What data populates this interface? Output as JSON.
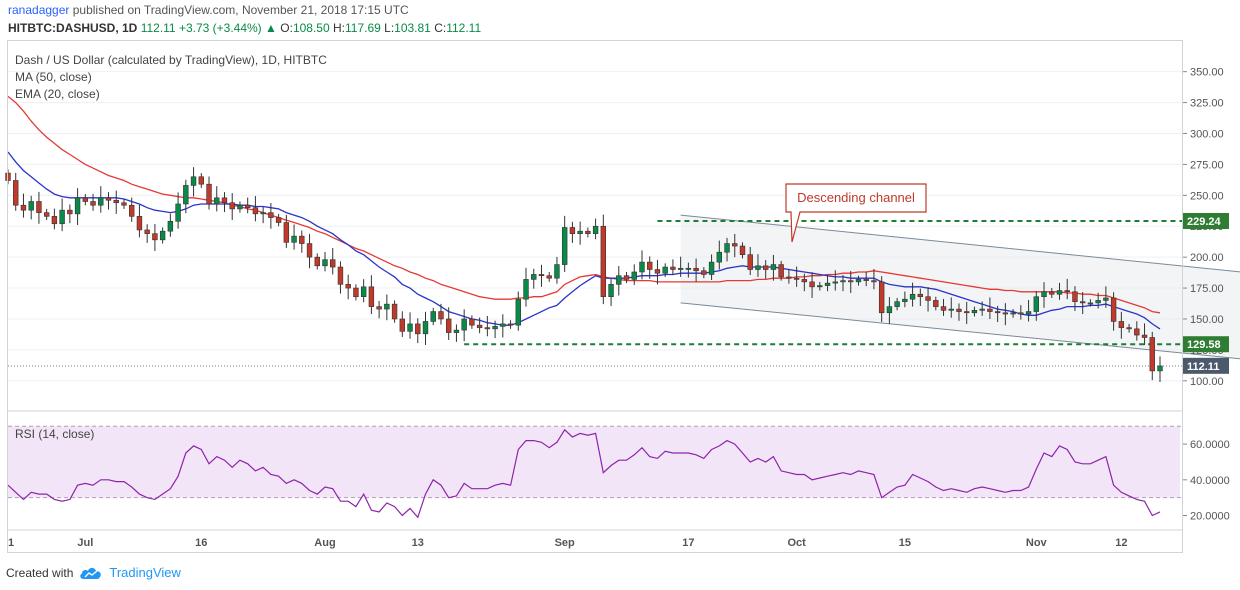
{
  "header": {
    "user": "ranadagger",
    "published_text": "published on TradingView.com, November 21, 2018 17:15 UTC"
  },
  "ohlc_bar": {
    "symbol": "HITBTC:DASHUSD, 1D",
    "last": "112.11",
    "change": "+3.73 (+3.44%)",
    "open_label": "O:",
    "open": "108.50",
    "high_label": "H:",
    "high": "117.69",
    "low_label": "L:",
    "low": "103.81",
    "close_label": "C:",
    "close": "112.11"
  },
  "legend": {
    "title": "Dash / US Dollar (calculated by TradingView), 1D, HITBTC",
    "ma": "MA (50, close)",
    "ema": "EMA (20, close)"
  },
  "rsi_label": "RSI (14, close)",
  "annotation": "Descending channel",
  "price_tags": [
    {
      "value": 229.24,
      "label": "229.24"
    },
    {
      "value": 129.58,
      "label": "129.58"
    },
    {
      "value": 112.11,
      "label": "112.11"
    }
  ],
  "footer": {
    "created_with": "Created with",
    "brand": "TradingView"
  },
  "colors": {
    "up": "#0a8a48",
    "down": "#c0392b",
    "ma50": "#e53935",
    "ema20": "#2a35c8",
    "rsi": "#8e24aa",
    "rsi_band": "#f3e5f8",
    "level": "#1e7e34",
    "tag": "#2e7d32",
    "last_tag": "#4a5a6a",
    "channel": "#7a8a99"
  },
  "chart_data": {
    "type": "candlestick",
    "price_axis": {
      "ticks": [
        100,
        125,
        150,
        175,
        200,
        225,
        250,
        275,
        300,
        325,
        350
      ],
      "tick_labels": [
        "100.00",
        "125.00",
        "150.00",
        "175.00",
        "200.00",
        "225.00",
        "250.00",
        "275.00",
        "300.00",
        "325.00",
        "350.00"
      ],
      "range": [
        78,
        374
      ]
    },
    "rsi_axis": {
      "ticks": [
        20,
        40,
        60
      ],
      "tick_labels": [
        "20.0000",
        "40.0000",
        "60.0000"
      ],
      "range": [
        13,
        78
      ],
      "band": [
        30,
        70
      ]
    },
    "x_axis": {
      "labels": [
        {
          "day": 0,
          "label": "1"
        },
        {
          "day": 10,
          "label": "Jul"
        },
        {
          "day": 25,
          "label": "16"
        },
        {
          "day": 41,
          "label": "Aug"
        },
        {
          "day": 53,
          "label": "13"
        },
        {
          "day": 72,
          "label": "Sep"
        },
        {
          "day": 88,
          "label": "17"
        },
        {
          "day": 102,
          "label": "Oct"
        },
        {
          "day": 116,
          "label": "15"
        },
        {
          "day": 133,
          "label": "Nov"
        },
        {
          "day": 144,
          "label": "12"
        }
      ]
    },
    "closes": [
      262,
      242,
      238,
      245,
      236,
      233,
      227,
      238,
      235,
      248,
      245,
      242,
      248,
      246,
      244,
      242,
      233,
      222,
      219,
      214,
      221,
      229,
      243,
      258,
      265,
      259,
      243,
      248,
      244,
      239,
      242,
      240,
      235,
      236,
      232,
      228,
      212,
      217,
      211,
      200,
      193,
      198,
      192,
      178,
      175,
      168,
      176,
      160,
      158,
      162,
      150,
      140,
      146,
      138,
      148,
      156,
      150,
      139,
      141,
      150,
      145,
      143,
      142,
      144,
      146,
      145,
      166,
      182,
      186,
      185,
      183,
      194,
      224,
      219,
      221,
      219,
      225,
      168,
      178,
      185,
      182,
      188,
      196,
      190,
      187,
      192,
      190,
      191,
      191,
      189,
      186,
      196,
      204,
      211,
      209,
      202,
      190,
      193,
      190,
      194,
      184,
      183,
      182,
      180,
      176,
      177,
      179,
      180,
      181,
      180,
      182,
      181,
      180,
      155,
      160,
      164,
      166,
      170,
      168,
      165,
      160,
      157,
      158,
      156,
      155,
      157,
      158,
      156,
      155,
      154,
      155,
      154,
      156,
      168,
      172,
      170,
      173,
      172,
      164,
      163,
      163,
      165,
      167,
      148,
      143,
      142,
      137,
      135,
      108,
      112
    ],
    "ma50": [
      330,
      325,
      318,
      310,
      303,
      297,
      292,
      287,
      283,
      279,
      275,
      272,
      269,
      266,
      264,
      262,
      259,
      257,
      255,
      253,
      251,
      250,
      249,
      248,
      248,
      247,
      246,
      245,
      244,
      242,
      241,
      239,
      238,
      236,
      234,
      232,
      230,
      228,
      226,
      224,
      221,
      219,
      216,
      213,
      210,
      207,
      205,
      202,
      199,
      196,
      193,
      191,
      188,
      186,
      183,
      181,
      178,
      176,
      174,
      172,
      170,
      168,
      167,
      166,
      166,
      166,
      167,
      167,
      168,
      168,
      170,
      172,
      178,
      181,
      184,
      185,
      186,
      184,
      183,
      182,
      181,
      181,
      181,
      181,
      180,
      180,
      180,
      180,
      180,
      180,
      180,
      180,
      180,
      181,
      181,
      181,
      181,
      182,
      182,
      183,
      183,
      183,
      184,
      184,
      185,
      185,
      186,
      186,
      187,
      187,
      188,
      188,
      189,
      188,
      187,
      186,
      185,
      184,
      183,
      182,
      181,
      180,
      179,
      178,
      177,
      176,
      175,
      174,
      174,
      173,
      173,
      172,
      172,
      172,
      172,
      172,
      172,
      171,
      171,
      170,
      170,
      169,
      169,
      167,
      165,
      163,
      161,
      159,
      156,
      155
    ],
    "ema20": [
      285,
      277,
      270,
      265,
      260,
      255,
      251,
      249,
      248,
      248,
      248,
      248,
      248,
      248,
      248,
      247,
      245,
      243,
      240,
      238,
      237,
      236,
      237,
      239,
      242,
      243,
      243,
      243,
      243,
      243,
      242,
      242,
      241,
      241,
      240,
      239,
      236,
      234,
      232,
      229,
      225,
      222,
      219,
      214,
      210,
      205,
      202,
      197,
      192,
      188,
      184,
      178,
      175,
      170,
      167,
      164,
      160,
      156,
      154,
      152,
      150,
      149,
      147,
      146,
      145,
      145,
      147,
      150,
      153,
      156,
      159,
      161,
      167,
      172,
      177,
      181,
      185,
      183,
      183,
      183,
      183,
      184,
      185,
      185,
      185,
      186,
      186,
      187,
      187,
      187,
      187,
      188,
      189,
      191,
      192,
      193,
      192,
      192,
      192,
      192,
      191,
      190,
      189,
      188,
      187,
      186,
      185,
      184,
      184,
      183,
      183,
      183,
      183,
      180,
      178,
      177,
      176,
      176,
      176,
      175,
      174,
      172,
      170,
      168,
      166,
      164,
      162,
      160,
      158,
      157,
      156,
      154,
      153,
      153,
      155,
      157,
      158,
      160,
      160,
      160,
      161,
      161,
      162,
      160,
      158,
      156,
      154,
      151,
      146,
      142
    ],
    "rsi": [
      37,
      33,
      29,
      33,
      32,
      32,
      29,
      28,
      29,
      37,
      38,
      37,
      40,
      40,
      39,
      39,
      36,
      32,
      30,
      29,
      32,
      35,
      42,
      55,
      59,
      57,
      49,
      53,
      51,
      47,
      51,
      49,
      45,
      47,
      43,
      42,
      38,
      40,
      38,
      34,
      32,
      36,
      35,
      28,
      28,
      25,
      32,
      23,
      22,
      27,
      25,
      20,
      24,
      19,
      32,
      40,
      37,
      30,
      31,
      38,
      35,
      35,
      35,
      37,
      38,
      37,
      57,
      62,
      62,
      61,
      58,
      61,
      68,
      64,
      66,
      65,
      66,
      44,
      48,
      51,
      51,
      54,
      58,
      53,
      52,
      56,
      55,
      55,
      55,
      54,
      52,
      57,
      59,
      62,
      60,
      55,
      50,
      52,
      50,
      53,
      45,
      44,
      43,
      43,
      40,
      41,
      42,
      43,
      44,
      43,
      45,
      44,
      43,
      30,
      33,
      36,
      37,
      43,
      41,
      39,
      36,
      34,
      35,
      34,
      33,
      35,
      36,
      35,
      34,
      33,
      34,
      34,
      36,
      46,
      55,
      53,
      59,
      57,
      50,
      49,
      49,
      51,
      53,
      37,
      33,
      31,
      29,
      28,
      20,
      22
    ],
    "levels": [
      229.24,
      129.58
    ],
    "channel": {
      "upper": [
        [
          87,
          234
        ],
        [
          191,
          168
        ]
      ],
      "lower": [
        [
          87,
          163
        ],
        [
          191,
          98
        ]
      ]
    }
  }
}
